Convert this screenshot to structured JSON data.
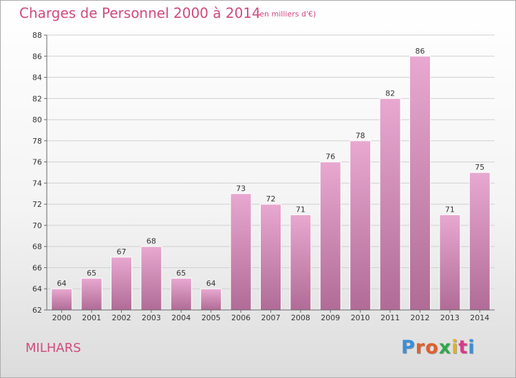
{
  "chart_data": {
    "type": "bar",
    "title": "Charges de Personnel 2000 à 2014",
    "subtitle": "(en milliers d'€)",
    "categories": [
      "2000",
      "2001",
      "2002",
      "2003",
      "2004",
      "2005",
      "2006",
      "2007",
      "2008",
      "2009",
      "2010",
      "2011",
      "2012",
      "2013",
      "2014"
    ],
    "values": [
      64,
      65,
      67,
      68,
      65,
      64,
      73,
      72,
      71,
      76,
      78,
      82,
      86,
      71,
      75
    ],
    "ylim": [
      62,
      88
    ],
    "yticks": [
      62,
      64,
      66,
      68,
      70,
      72,
      74,
      76,
      78,
      80,
      82,
      84,
      86,
      88
    ],
    "grid": true,
    "colors": {
      "bar_top": "#e8a8d0",
      "bar_bottom": "#b06c96"
    }
  },
  "footer": {
    "commune": "MILHARS",
    "logo": "Proxiti",
    "logo_colors": [
      "#3a8fd6",
      "#e25f2a",
      "#e25f2a",
      "#2fa84a",
      "#e4b21c",
      "#d83a8a",
      "#3a8fd6"
    ]
  }
}
